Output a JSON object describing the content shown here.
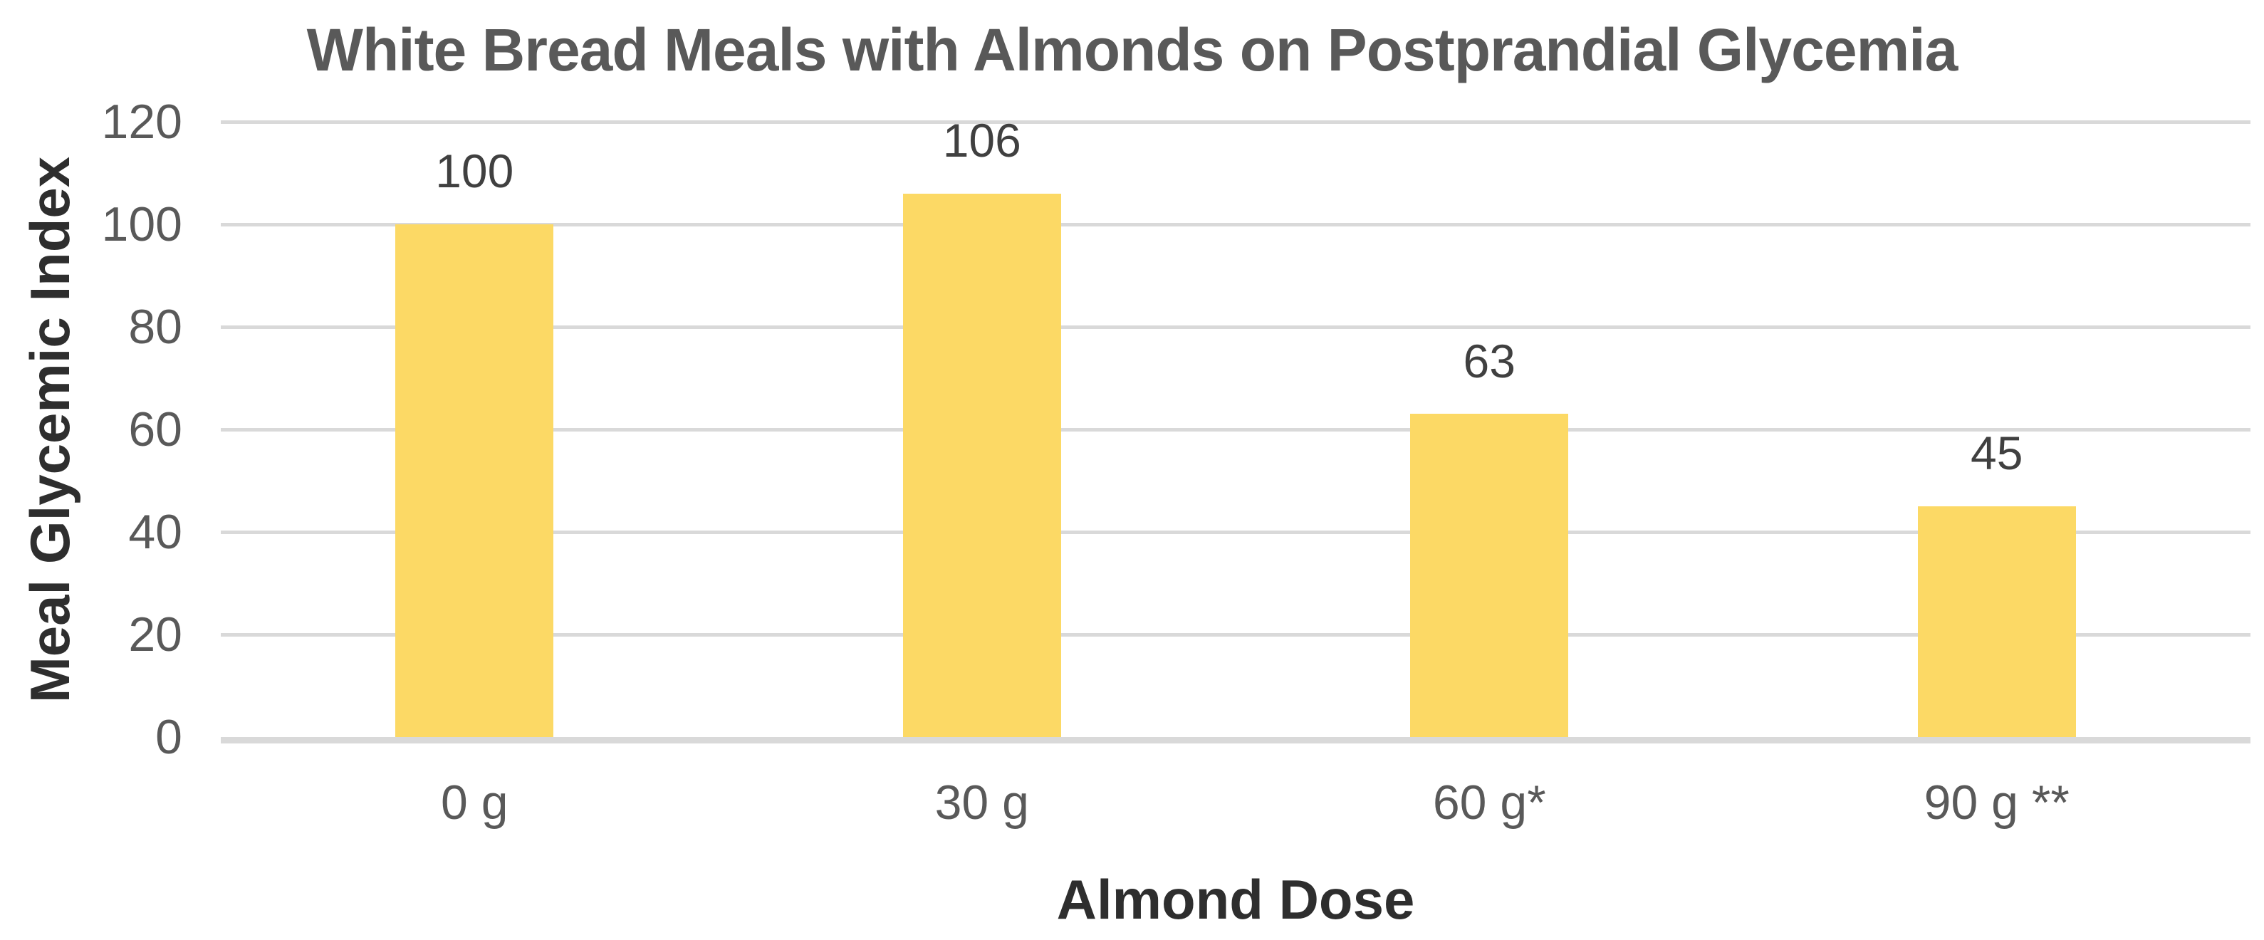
{
  "chart_data": {
    "type": "bar",
    "title": "White Bread Meals with Almonds on Postprandial Glycemia",
    "xlabel": "Almond Dose",
    "ylabel": "Meal Glycemic Index",
    "categories": [
      "0 g",
      "30 g",
      "60 g*",
      "90 g **"
    ],
    "values": [
      100,
      106,
      63,
      45
    ],
    "data_labels": [
      "100",
      "106",
      "63",
      "45"
    ],
    "ylim": [
      0,
      120
    ],
    "yticks": [
      0,
      20,
      40,
      60,
      80,
      100,
      120
    ],
    "grid": true,
    "legend_position": "none",
    "colors": {
      "bar_fill": "#FCD965",
      "gridline": "#D9D9D9",
      "axis_line": "#D9D9D9",
      "title_text": "#595959",
      "tick_text": "#595959",
      "category_text": "#595959",
      "data_label_text": "#404040",
      "axis_title_text": "#2E2E2E",
      "background": "#FFFFFF"
    }
  }
}
